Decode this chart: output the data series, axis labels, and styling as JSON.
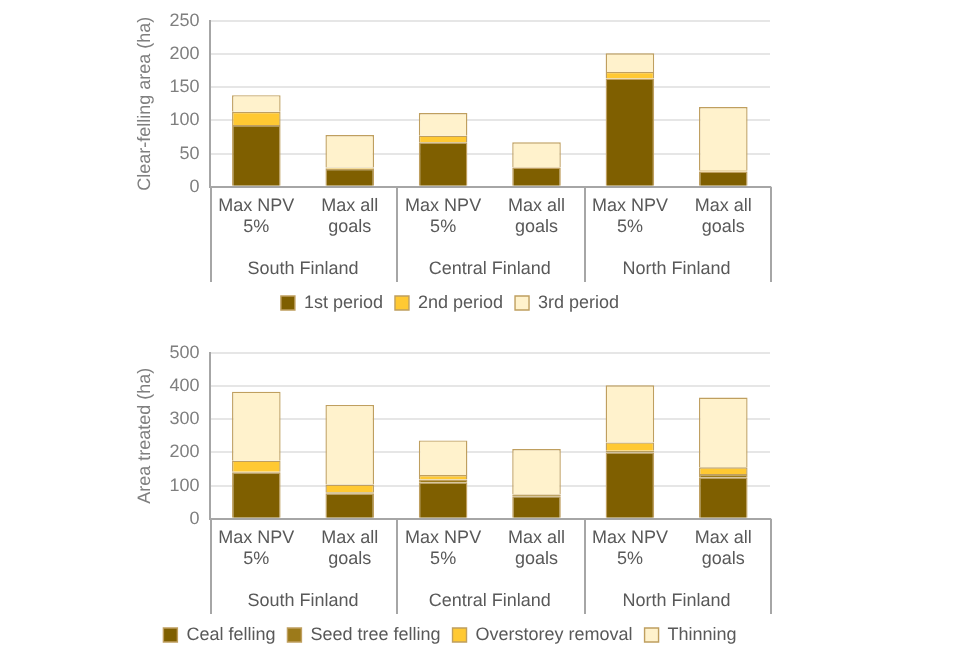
{
  "chart_data": [
    {
      "type": "bar",
      "stacked": true,
      "ylabel": "Clear-felling area (ha)",
      "categories": [
        "Max NPV 5%",
        "Max all goals",
        "Max NPV 5%",
        "Max all goals",
        "Max NPV 5%",
        "Max all goals"
      ],
      "annotations": [
        "South Finland",
        "Central Finland",
        "North Finland"
      ],
      "series": [
        {
          "name": "1st period",
          "color": "#7f5f00",
          "values": [
            93,
            27,
            67,
            29,
            163,
            23
          ]
        },
        {
          "name": "2nd period",
          "color": "#ffc933",
          "values": [
            20,
            2,
            10,
            1,
            10,
            2
          ]
        },
        {
          "name": "3rd period",
          "color": "#fff2cc",
          "values": [
            25,
            49,
            34,
            37,
            28,
            95
          ]
        }
      ],
      "ylim": [
        0,
        250
      ],
      "yticks": [
        0,
        50,
        100,
        150,
        200,
        250
      ],
      "grid": "y",
      "legend": "bottom"
    },
    {
      "type": "bar",
      "stacked": true,
      "ylabel": "Area treated (ha)",
      "categories": [
        "Max NPV 5%",
        "Max all goals",
        "Max NPV 5%",
        "Max all goals",
        "Max NPV 5%",
        "Max all goals"
      ],
      "annotations": [
        "South Finland",
        "Central Finland",
        "North Finland"
      ],
      "series": [
        {
          "name": "Ceal felling",
          "color": "#7f5f00",
          "values": [
            140,
            77,
            110,
            68,
            200,
            125
          ]
        },
        {
          "name": "Seed tree felling",
          "color": "#9c7a1a",
          "values": [
            2,
            3,
            8,
            5,
            5,
            10
          ]
        },
        {
          "name": "Overstorey removal",
          "color": "#ffc933",
          "values": [
            33,
            23,
            14,
            2,
            25,
            20
          ]
        },
        {
          "name": "Thinning",
          "color": "#fff2cc",
          "values": [
            208,
            240,
            104,
            135,
            172,
            210
          ]
        }
      ],
      "ylim": [
        0,
        500
      ],
      "yticks": [
        0,
        100,
        200,
        300,
        400,
        500
      ],
      "grid": "y",
      "legend": "bottom"
    }
  ]
}
